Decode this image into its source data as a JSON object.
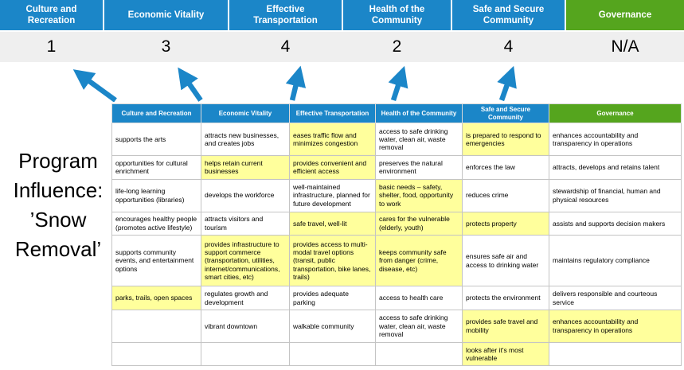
{
  "title": {
    "text": "Program Influence: ’Snow Removal’"
  },
  "colors": {
    "header_blue": "#1b86c8",
    "header_green": "#55a51e",
    "highlight_yellow": "#ffff9c",
    "score_band_gray": "#efefef",
    "arrow_blue": "#1b86c8"
  },
  "scoreboard": {
    "columns": [
      {
        "label": "Culture and Recreation",
        "score": "1",
        "green": false
      },
      {
        "label": "Economic Vitality",
        "score": "3",
        "green": false
      },
      {
        "label": "Effective Transportation",
        "score": "4",
        "green": false
      },
      {
        "label": "Health of the Community",
        "score": "2",
        "green": false
      },
      {
        "label": "Safe and Secure Community",
        "score": "4",
        "green": false
      },
      {
        "label": "Governance",
        "score": "N/A",
        "green": true
      }
    ]
  },
  "matrix": {
    "headers": [
      "Culture and Recreation",
      "Economic Vitality",
      "Effective Transportation",
      "Health of the Community",
      "Safe and Secure Community",
      "Governance"
    ],
    "rows": [
      [
        {
          "text": "supports the arts",
          "highlight": false
        },
        {
          "text": "attracts new businesses, and creates jobs",
          "highlight": false
        },
        {
          "text": "eases traffic flow and minimizes congestion",
          "highlight": true
        },
        {
          "text": "access to safe drinking water, clean air, waste removal",
          "highlight": false
        },
        {
          "text": "is prepared to respond to emergencies",
          "highlight": true
        },
        {
          "text": "enhances accountability and transparency in operations",
          "highlight": false
        }
      ],
      [
        {
          "text": "opportunities for cultural enrichment",
          "highlight": false
        },
        {
          "text": "helps retain current businesses",
          "highlight": true
        },
        {
          "text": "provides convenient and efficient access",
          "highlight": true
        },
        {
          "text": "preserves the natural environment",
          "highlight": false
        },
        {
          "text": "enforces the law",
          "highlight": false
        },
        {
          "text": "attracts, develops and retains talent",
          "highlight": false
        }
      ],
      [
        {
          "text": "life-long learning opportunities (libraries)",
          "highlight": false
        },
        {
          "text": "develops the workforce",
          "highlight": false
        },
        {
          "text": "well-maintained infrastructure, planned for future development",
          "highlight": false
        },
        {
          "text": "basic needs – safety, shelter, food, opportunity to work",
          "highlight": true
        },
        {
          "text": "reduces crime",
          "highlight": false
        },
        {
          "text": "stewardship of financial, human and physical resources",
          "highlight": false
        }
      ],
      [
        {
          "text": "encourages healthy people (promotes active lifestyle)",
          "highlight": false
        },
        {
          "text": "attracts visitors and tourism",
          "highlight": false
        },
        {
          "text": "safe travel, well-lit",
          "highlight": true
        },
        {
          "text": "cares for the vulnerable (elderly, youth)",
          "highlight": true
        },
        {
          "text": "protects property",
          "highlight": true
        },
        {
          "text": "assists and supports decision makers",
          "highlight": false
        }
      ],
      [
        {
          "text": "supports community events, and entertainment options",
          "highlight": false
        },
        {
          "text": "provides infrastructure to support commerce (transportation, utilities, internet/communications, smart cities, etc)",
          "highlight": true
        },
        {
          "text": "provides access to multi-modal travel options (transit, public transportation, bike lanes, trails)",
          "highlight": true
        },
        {
          "text": "keeps community safe from danger (crime, disease, etc)",
          "highlight": true
        },
        {
          "text": "ensures safe air and access to drinking water",
          "highlight": false
        },
        {
          "text": "maintains regulatory compliance",
          "highlight": false
        }
      ],
      [
        {
          "text": "parks, trails, open spaces",
          "highlight": true
        },
        {
          "text": "regulates growth and development",
          "highlight": false
        },
        {
          "text": "provides adequate parking",
          "highlight": false
        },
        {
          "text": "access to health care",
          "highlight": false
        },
        {
          "text": "protects the environment",
          "highlight": false
        },
        {
          "text": "delivers responsible and courteous service",
          "highlight": false
        }
      ],
      [
        {
          "text": "",
          "highlight": false
        },
        {
          "text": "vibrant downtown",
          "highlight": false
        },
        {
          "text": "walkable community",
          "highlight": false
        },
        {
          "text": "access to safe drinking water, clean air, waste removal",
          "highlight": false
        },
        {
          "text": "provides safe travel and mobility",
          "highlight": true
        },
        {
          "text": "enhances accountability and transparency in operations",
          "highlight": true
        }
      ],
      [
        {
          "text": "",
          "highlight": false
        },
        {
          "text": "",
          "highlight": false
        },
        {
          "text": "",
          "highlight": false
        },
        {
          "text": "",
          "highlight": false
        },
        {
          "text": "looks after it's most vulnerable",
          "highlight": true
        },
        {
          "text": "",
          "highlight": false
        }
      ]
    ]
  }
}
